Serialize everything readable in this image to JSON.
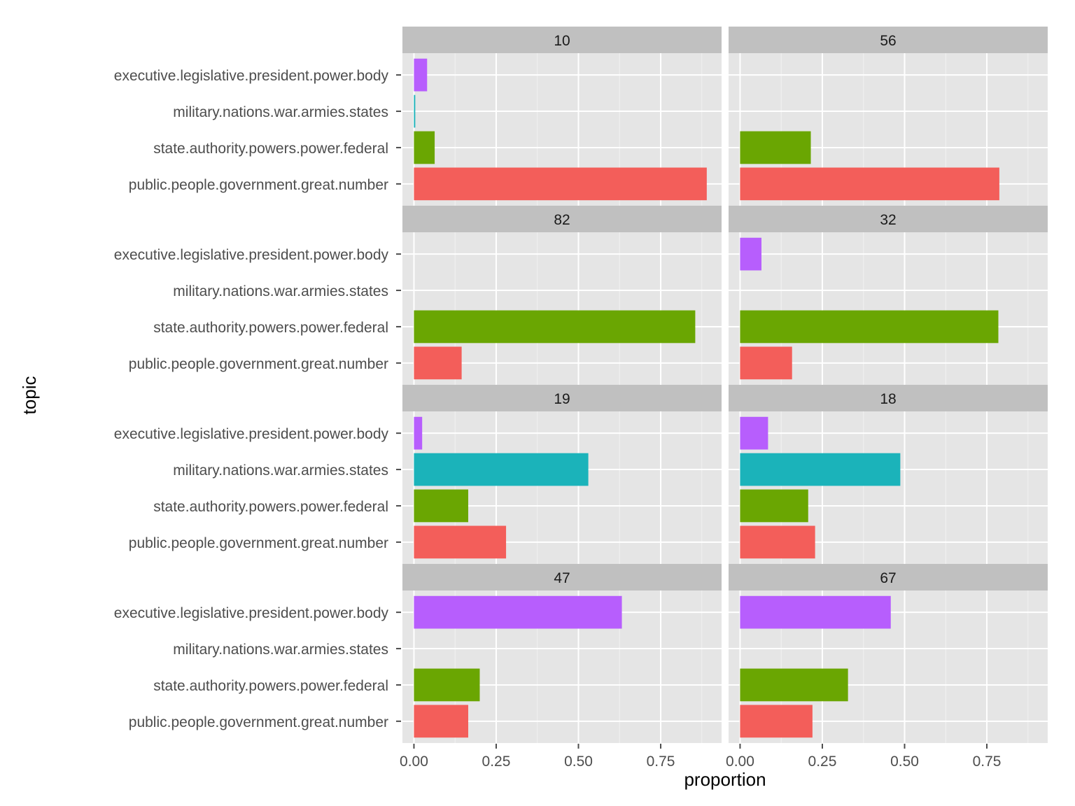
{
  "chart_data": {
    "type": "bar",
    "orientation": "horizontal",
    "xlabel": "proportion",
    "ylabel": "topic",
    "xlim": [
      -0.035,
      0.935
    ],
    "x_ticks": [
      0.0,
      0.25,
      0.5,
      0.75
    ],
    "x_tick_labels": [
      "0.00",
      "0.25",
      "0.50",
      "0.75"
    ],
    "grid": true,
    "legend": "none",
    "categories": [
      "executive.legislative.president.power.body",
      "military.nations.war.armies.states",
      "state.authority.powers.power.federal",
      "public.people.government.great.number"
    ],
    "colors": [
      "#B75EFD",
      "#1BB3BA",
      "#6AA602",
      "#F35E5A"
    ],
    "panels": [
      {
        "label": "10",
        "values": [
          0.04,
          0.004,
          0.063,
          0.89
        ]
      },
      {
        "label": "56",
        "values": [
          0,
          0,
          0.215,
          0.788
        ]
      },
      {
        "label": "82",
        "values": [
          0,
          0,
          0.855,
          0.145
        ]
      },
      {
        "label": "32",
        "values": [
          0.065,
          0,
          0.785,
          0.158
        ]
      },
      {
        "label": "19",
        "values": [
          0.025,
          0.53,
          0.165,
          0.28
        ]
      },
      {
        "label": "18",
        "values": [
          0.085,
          0.487,
          0.207,
          0.228
        ]
      },
      {
        "label": "47",
        "values": [
          0.632,
          0,
          0.2,
          0.165
        ]
      },
      {
        "label": "67",
        "values": [
          0.458,
          0,
          0.328,
          0.22
        ]
      }
    ]
  }
}
